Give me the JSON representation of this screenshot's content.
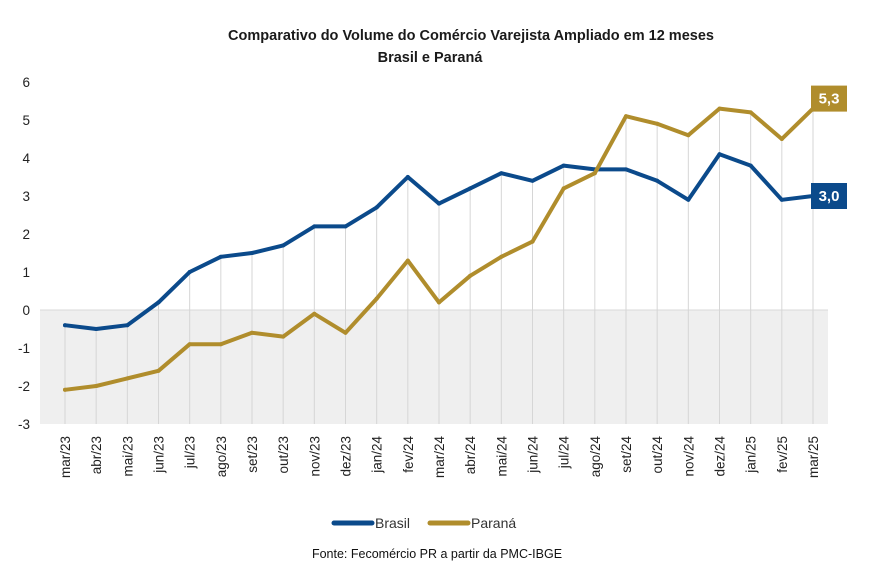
{
  "chart_data": {
    "type": "line",
    "title": "Comparativo do Volume do Comércio Varejista Ampliado em 12 meses",
    "subtitle": "Brasil e Paraná",
    "source": "Fonte: Fecomércio PR a partir da PMC-IBGE",
    "categories": [
      "mar/23",
      "abr/23",
      "mai/23",
      "jun/23",
      "jul/23",
      "ago/23",
      "set/23",
      "out/23",
      "nov/23",
      "dez/23",
      "jan/24",
      "fev/24",
      "mar/24",
      "abr/24",
      "mai/24",
      "jun/24",
      "jul/24",
      "ago/24",
      "set/24",
      "out/24",
      "nov/24",
      "dez/24",
      "jan/25",
      "fev/25",
      "mar/25"
    ],
    "ylim": [
      -3,
      6
    ],
    "yticks": [
      -3,
      -2,
      -1,
      0,
      1,
      2,
      3,
      4,
      5,
      6
    ],
    "grid": "vertical drop lines",
    "legend_position": "bottom",
    "series": [
      {
        "name": "Brasil",
        "color": "#0b4a8b",
        "values": [
          -0.4,
          -0.5,
          -0.4,
          0.2,
          1.0,
          1.4,
          1.5,
          1.7,
          2.2,
          2.2,
          2.7,
          3.5,
          2.8,
          3.2,
          3.6,
          3.4,
          3.8,
          3.7,
          3.7,
          3.4,
          2.9,
          4.1,
          3.8,
          2.9,
          3.0
        ],
        "end_label": "3,0"
      },
      {
        "name": "Paraná",
        "color": "#b08d2c",
        "values": [
          -2.1,
          -2.0,
          -1.8,
          -1.6,
          -0.9,
          -0.9,
          -0.6,
          -0.7,
          -0.1,
          -0.6,
          0.3,
          1.3,
          0.2,
          0.9,
          1.4,
          1.8,
          3.2,
          3.6,
          5.1,
          4.9,
          4.6,
          5.3,
          5.2,
          4.5,
          5.3
        ],
        "end_label": "5,3"
      }
    ]
  }
}
